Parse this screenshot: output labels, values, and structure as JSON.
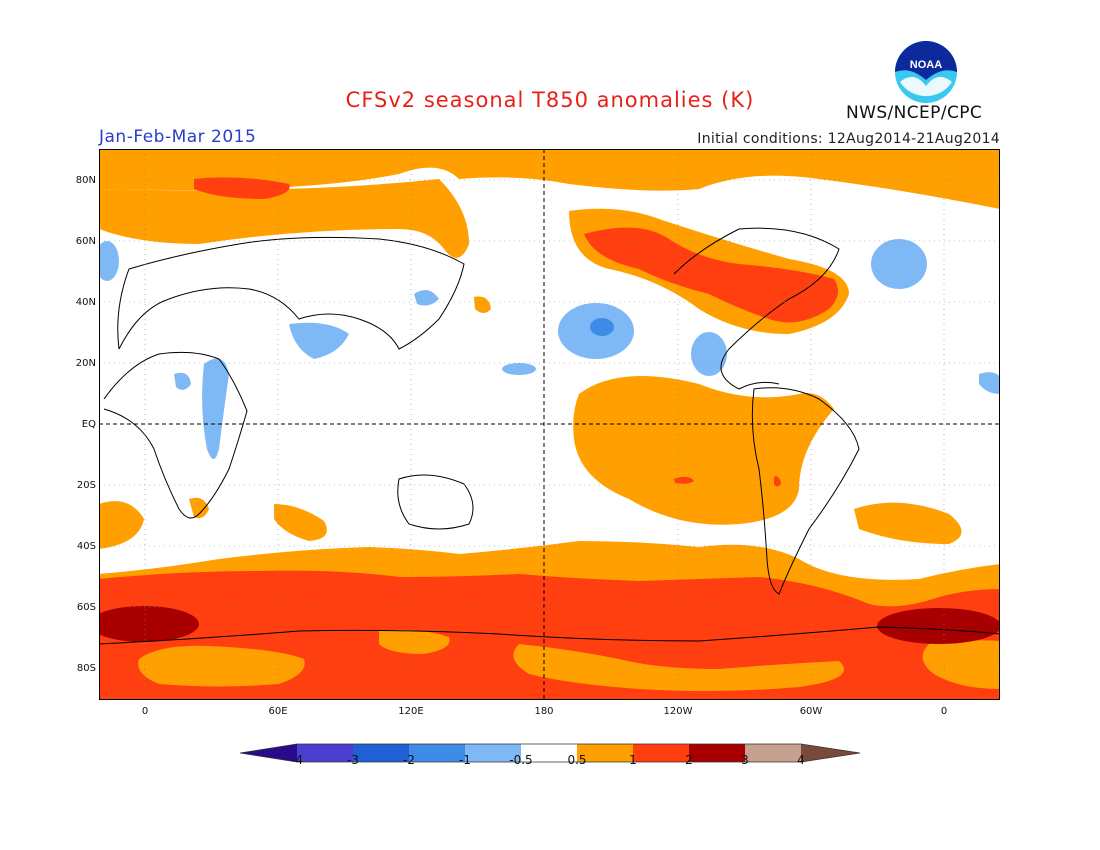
{
  "header": {
    "title": "CFSv2 seasonal T850 anomalies (K)",
    "period": "Jan-Feb-Mar 2015",
    "initial_conditions": "Initial conditions: 12Aug2014-21Aug2014",
    "agency": "NWS/NCEP/CPC",
    "logo_text": "NOAA"
  },
  "axes": {
    "lat_labels": [
      "80N",
      "60N",
      "40N",
      "20N",
      "EQ",
      "20S",
      "40S",
      "60S",
      "80S"
    ],
    "lon_labels": [
      "0",
      "60E",
      "120E",
      "180",
      "120W",
      "60W",
      "0"
    ]
  },
  "colorbar": {
    "labels": [
      "-4",
      "-3",
      "-2",
      "-1",
      "-0.5",
      "0.5",
      "1",
      "2",
      "3",
      "4"
    ],
    "colors": [
      "#2a0a8c",
      "#4b3fd0",
      "#1f60d4",
      "#3f8ce8",
      "#7fb9f5",
      "#ffffff",
      "#ff9f00",
      "#ff3f10",
      "#a80000",
      "#c8a090",
      "#7a4a38"
    ]
  },
  "icons": {
    "logo": "noaa-logo-icon"
  }
}
